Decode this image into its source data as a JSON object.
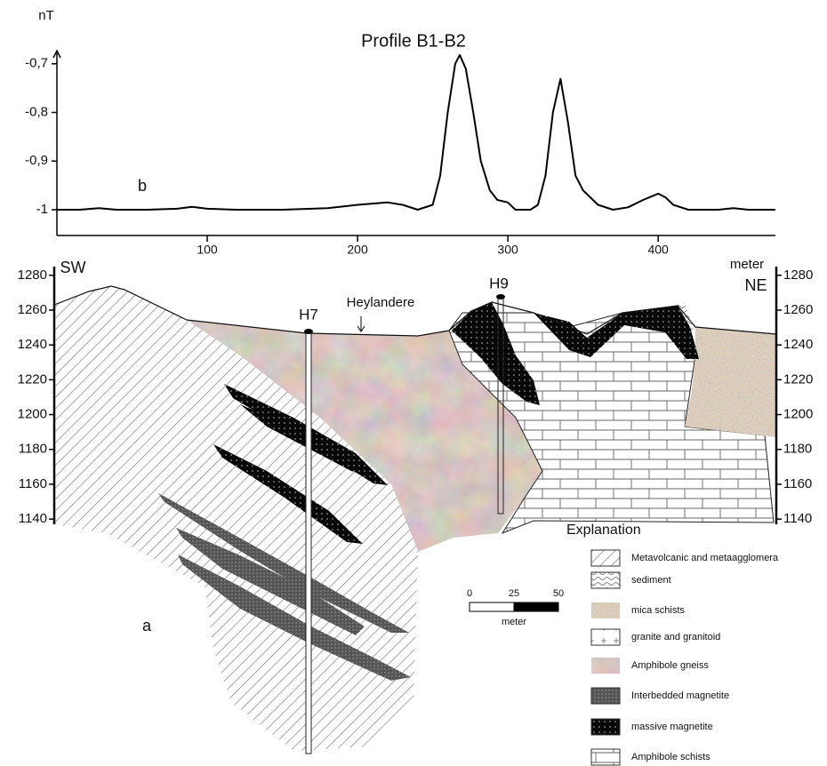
{
  "chart_data": {
    "type": "line",
    "title": "Profile B1-B2",
    "y_label": "nT",
    "annotation": "b",
    "x": [
      0,
      15,
      28,
      40,
      60,
      80,
      90,
      100,
      120,
      150,
      180,
      200,
      220,
      230,
      240,
      250,
      255,
      260,
      265,
      268,
      272,
      277,
      282,
      288,
      293,
      300,
      305,
      310,
      315,
      320,
      325,
      330,
      335,
      340,
      345,
      350,
      360,
      370,
      380,
      390,
      400,
      405,
      410,
      420,
      440,
      450,
      460,
      478
    ],
    "values": [
      -1,
      -1,
      -0.997,
      -1,
      -1,
      -0.998,
      -0.994,
      -0.998,
      -1,
      -1,
      -0.997,
      -0.99,
      -0.985,
      -0.99,
      -1,
      -0.99,
      -0.93,
      -0.8,
      -0.7,
      -0.682,
      -0.71,
      -0.8,
      -0.9,
      -0.96,
      -0.98,
      -0.985,
      -1,
      -1,
      -1,
      -0.99,
      -0.93,
      -0.8,
      -0.731,
      -0.82,
      -0.93,
      -0.96,
      -0.99,
      -1,
      -0.995,
      -0.98,
      -0.967,
      -0.975,
      -0.99,
      -1,
      -1,
      -0.997,
      -1,
      -1
    ],
    "color": "#000000",
    "xlim": [
      0,
      478
    ],
    "ylim": [
      -1.053,
      -0.673
    ],
    "xticks": [
      100,
      200,
      300,
      400
    ],
    "yticks": [
      {
        "value": -0.7,
        "label": "-0,7"
      },
      {
        "value": -0.8,
        "label": "-0,8"
      },
      {
        "value": -0.9,
        "label": "-0,9"
      },
      -1
    ]
  },
  "cross_section": {
    "label": "a",
    "left_label": "SW",
    "right_label": "NE",
    "unit": "meter",
    "ylim": [
      1137,
      1285
    ],
    "yticks": [
      1140,
      1160,
      1180,
      1200,
      1220,
      1240,
      1260,
      1280
    ],
    "boreholes": [
      "H7",
      "H9"
    ],
    "locality": "Heylandere",
    "scale_bar": {
      "ticks": [
        "0",
        "25",
        "50"
      ],
      "unit": "meter"
    },
    "legend": {
      "title": "Explanation",
      "items": [
        "Metavolcanic and metaagglomera",
        "sediment",
        "mica schists",
        "granite and granitoid",
        "Amphibole gneiss",
        "Interbedded magnetite",
        "massive magnetite",
        "Amphibole schists"
      ]
    }
  }
}
